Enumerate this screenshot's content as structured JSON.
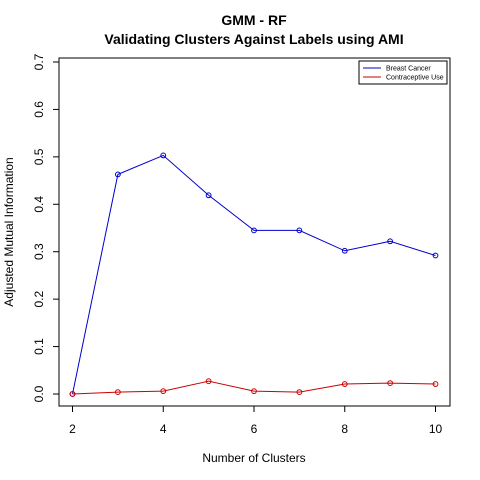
{
  "chart_data": {
    "type": "line",
    "title": "GMM - RF",
    "subtitle": "Validating Clusters Against Labels using AMI",
    "xlabel": "Number of Clusters",
    "ylabel": "Adjusted Mutual Information",
    "x": [
      2,
      3,
      4,
      5,
      6,
      7,
      8,
      9,
      10
    ],
    "xlim": [
      2,
      10
    ],
    "ylim": [
      0,
      0.7
    ],
    "xticks": [
      "2",
      "4",
      "6",
      "8",
      "10"
    ],
    "yticks": [
      "0.0",
      "0.1",
      "0.2",
      "0.3",
      "0.4",
      "0.5",
      "0.6",
      "0.7"
    ],
    "grid": false,
    "legend_position": "top-right",
    "series": [
      {
        "name": "Breast Cancer",
        "color": "#0000cc",
        "values": [
          0.0,
          0.463,
          0.503,
          0.419,
          0.345,
          0.345,
          0.302,
          0.322,
          0.292
        ]
      },
      {
        "name": "Contraceptive Use",
        "color": "#cc0000",
        "values": [
          0.0,
          0.004,
          0.006,
          0.027,
          0.006,
          0.004,
          0.021,
          0.023,
          0.021
        ]
      }
    ]
  }
}
